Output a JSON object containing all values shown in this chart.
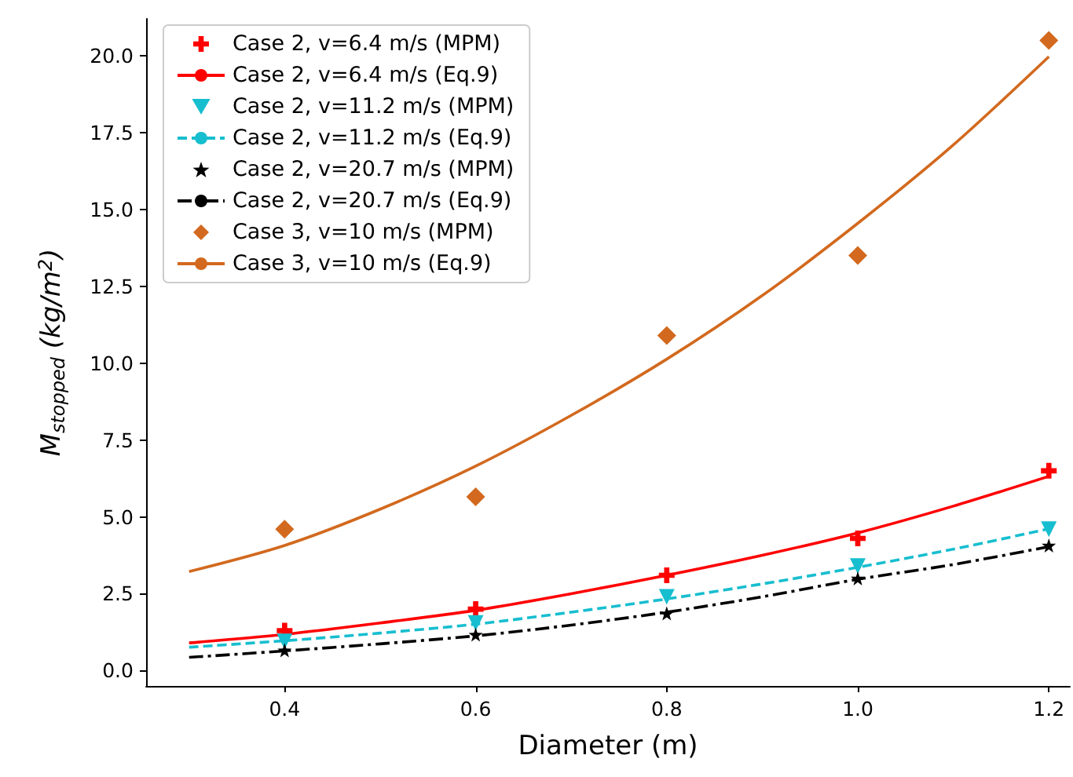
{
  "chart_data": {
    "type": "scatter",
    "xlabel": "Diameter (m)",
    "ylabel": "M$_{stopped}$ (kg/m$^{2}$)",
    "xlim": [
      0.255,
      1.222
    ],
    "ylim": [
      -0.5,
      21.2
    ],
    "xticks": [
      0.4,
      0.6,
      0.8,
      {
        "value": 1,
        "label": "1.0"
      },
      1.2
    ],
    "yticks": [
      {
        "value": 0,
        "label": "0.0"
      },
      {
        "value": 2.5,
        "label": "2.5"
      },
      {
        "value": 5,
        "label": "5.0"
      },
      {
        "value": 7.5,
        "label": "7.5"
      },
      {
        "value": 10,
        "label": "10.0"
      },
      {
        "value": 12.5,
        "label": "12.5"
      },
      {
        "value": 15,
        "label": "15.0"
      },
      {
        "value": 17.5,
        "label": "17.5"
      },
      {
        "value": 20,
        "label": "20.0"
      }
    ],
    "grid": false,
    "legend": "top left",
    "series": [
      {
        "name": "Case 2, v=6.4 m/s (MPM)",
        "type": "scatter",
        "marker": "cross",
        "color": "#ff0000",
        "x": [
          0.4,
          0.6,
          0.8,
          1.0,
          1.2
        ],
        "values": [
          1.3,
          2.0,
          3.1,
          4.3,
          6.5
        ]
      },
      {
        "name": "Case 2, v=6.4 m/s (Eq.9)",
        "type": "line",
        "marker": "none",
        "line_style": "solid",
        "color": "#ff0000",
        "x": [
          0.3,
          0.4,
          0.5,
          0.6,
          0.7,
          0.8,
          0.9,
          1.0,
          1.1,
          1.2
        ],
        "values": [
          0.9,
          1.18,
          1.55,
          1.96,
          2.5,
          3.1,
          3.75,
          4.48,
          5.35,
          6.32
        ]
      },
      {
        "name": "Case 2, v=11.2 m/s (MPM)",
        "type": "scatter",
        "marker": "triangle",
        "color": "#17becf",
        "x": [
          0.4,
          0.6,
          0.8,
          1.0,
          1.2
        ],
        "values": [
          0.95,
          1.55,
          2.4,
          3.4,
          4.6
        ]
      },
      {
        "name": "Case 2, v=11.2 m/s (Eq.9)",
        "type": "line",
        "marker": "none",
        "line_style": "dashed",
        "color": "#17becf",
        "x": [
          0.3,
          0.4,
          0.5,
          0.6,
          0.7,
          0.8,
          0.9,
          1.0,
          1.1,
          1.2
        ],
        "values": [
          0.76,
          0.97,
          1.22,
          1.51,
          1.9,
          2.33,
          2.82,
          3.36,
          3.95,
          4.61
        ]
      },
      {
        "name": "Case 2, v=20.7 m/s (MPM)",
        "type": "scatter",
        "marker": "star",
        "color": "#000000",
        "x": [
          0.4,
          0.6,
          0.8,
          1.0,
          1.2
        ],
        "values": [
          0.66,
          1.17,
          1.86,
          3.0,
          4.07
        ]
      },
      {
        "name": "Case 2, v=20.7 m/s (Eq.9)",
        "type": "line",
        "marker": "none",
        "line_style": "dashdot",
        "color": "#000000",
        "x": [
          0.3,
          0.4,
          0.5,
          0.6,
          0.7,
          0.8,
          0.9,
          1.0,
          1.1,
          1.2
        ],
        "values": [
          0.43,
          0.64,
          0.87,
          1.13,
          1.48,
          1.9,
          2.4,
          2.97,
          3.45,
          4.03
        ]
      },
      {
        "name": "Case 3, v=10 m/s (MPM)",
        "type": "scatter",
        "marker": "diamond",
        "color": "#d2691e",
        "x": [
          0.4,
          0.6,
          0.8,
          1.0,
          1.2
        ],
        "values": [
          4.6,
          5.65,
          10.9,
          13.5,
          20.5
        ]
      },
      {
        "name": "Case 3, v=10 m/s (Eq.9)",
        "type": "line",
        "marker": "none",
        "line_style": "solid",
        "color": "#d2691e",
        "x": [
          0.3,
          0.4,
          0.5,
          0.6,
          0.7,
          0.8,
          0.9,
          1.0,
          1.1,
          1.2
        ],
        "values": [
          3.22,
          4.07,
          5.25,
          6.65,
          8.3,
          10.13,
          12.2,
          14.55,
          17.1,
          19.97
        ]
      }
    ]
  }
}
